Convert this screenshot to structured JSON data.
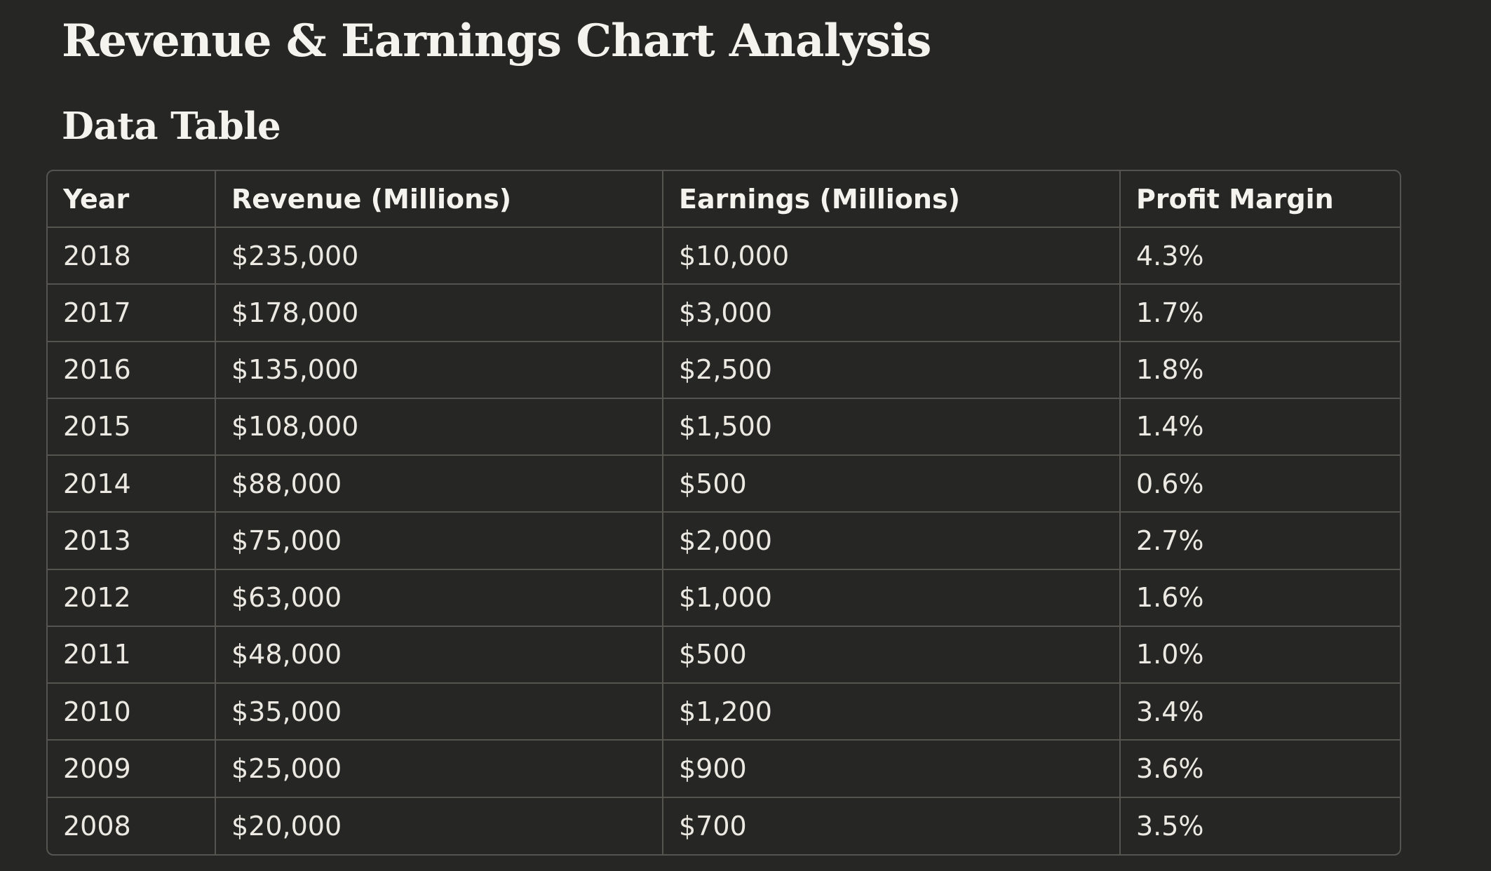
{
  "page_title": "Revenue & Earnings Chart Analysis",
  "section_title": "Data Table",
  "table": {
    "headers": [
      "Year",
      "Revenue (Millions)",
      "Earnings (Millions)",
      "Profit Margin"
    ],
    "rows": [
      [
        "2018",
        "$235,000",
        "$10,000",
        "4.3%"
      ],
      [
        "2017",
        "$178,000",
        "$3,000",
        "1.7%"
      ],
      [
        "2016",
        "$135,000",
        "$2,500",
        "1.8%"
      ],
      [
        "2015",
        "$108,000",
        "$1,500",
        "1.4%"
      ],
      [
        "2014",
        "$88,000",
        "$500",
        "0.6%"
      ],
      [
        "2013",
        "$75,000",
        "$2,000",
        "2.7%"
      ],
      [
        "2012",
        "$63,000",
        "$1,000",
        "1.6%"
      ],
      [
        "2011",
        "$48,000",
        "$500",
        "1.0%"
      ],
      [
        "2010",
        "$35,000",
        "$1,200",
        "3.4%"
      ],
      [
        "2009",
        "$25,000",
        "$900",
        "3.6%"
      ],
      [
        "2008",
        "$20,000",
        "$700",
        "3.5%"
      ]
    ]
  },
  "colors": {
    "background": "#262624",
    "text": "#f5f3ee",
    "border": "#55544f"
  }
}
